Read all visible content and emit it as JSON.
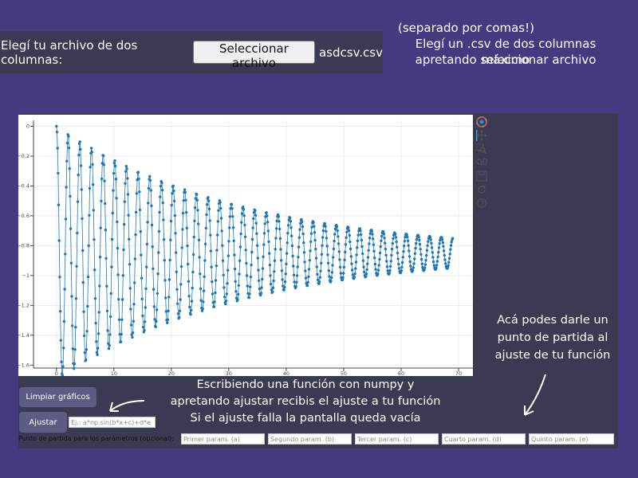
{
  "file_bar": {
    "label": "Elegí tu archivo de dos columnas:",
    "button_label": "Seleccionar archivo",
    "file_name": "asdcsv.csv"
  },
  "notes": {
    "top_right_1": "(separado por comas!)",
    "top_right_2": "Elegí un .csv de dos columnas máximo",
    "top_right_3": "apretando seleccionar archivo",
    "right_1": "Acá podes darle un",
    "right_2": "punto de partida al",
    "right_3": "ajuste de tu función",
    "bottom_1": "Escribiendo una función con numpy y",
    "bottom_2": "apretando ajustar recibis el ajuste a tu función",
    "bottom_3": "Si el ajuste falla la pantalla queda vacía"
  },
  "controls": {
    "clear_label": "Limpiar gráficos",
    "fit_label": "Ajustar",
    "function_placeholder": "Ej.: a*np.sin(b*x+c)+d*e",
    "params_label": "Punto de partida para los parámetros (opcional):",
    "param_placeholders": [
      "Primer param. (a)",
      "Segundo param. (b)",
      "Tercer param. (c)",
      "Cuarto param. (d)",
      "Quinto param. (e)"
    ]
  },
  "toolbar": {
    "icons": [
      "bokeh-logo-icon",
      "pan-icon",
      "box-zoom-icon",
      "wheel-zoom-icon",
      "save-icon",
      "reset-icon",
      "help-icon"
    ]
  },
  "colors": {
    "background": "#433a80",
    "panel": "#3b3a53",
    "series": "#1f77b4"
  },
  "chart_data": {
    "type": "line",
    "x_ticks": [
      0,
      10,
      20,
      30,
      40,
      50,
      60,
      70
    ],
    "y_ticks": [
      0,
      -0.2,
      -0.4,
      -0.6,
      -0.8,
      -1,
      -1.2,
      -1.4,
      -1.6
    ],
    "xlim": [
      -4,
      72.5
    ],
    "ylim": [
      -1.62,
      0.04
    ],
    "grid": true,
    "series": [
      {
        "kind": "damped-oscillation",
        "x_range": [
          0,
          69
        ],
        "start": 0,
        "center": -0.85,
        "initial_amplitude": 0.85,
        "final_amplitude": 0.1,
        "period": 2.03,
        "markers": true
      }
    ]
  }
}
